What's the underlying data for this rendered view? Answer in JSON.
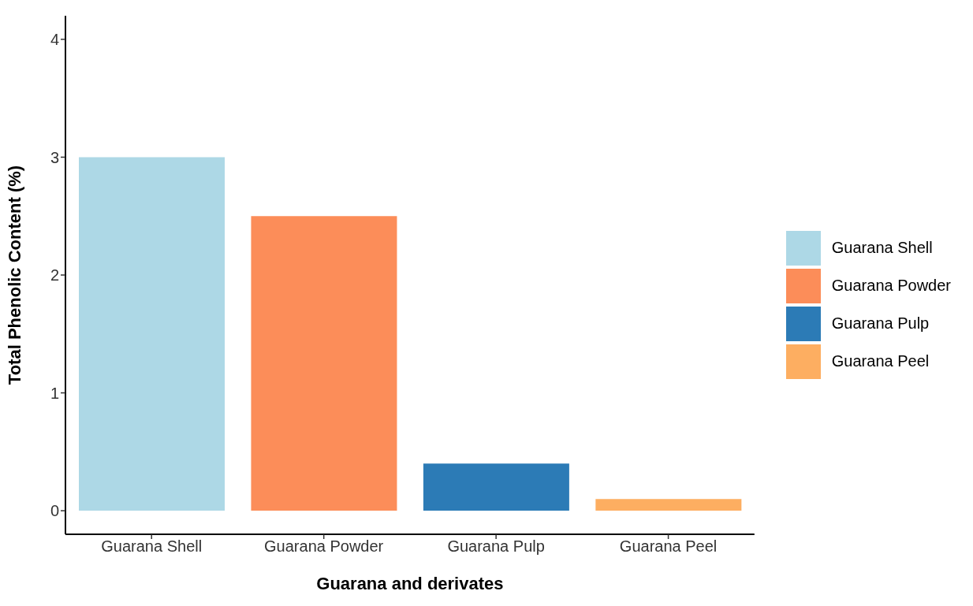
{
  "chart_data": {
    "type": "bar",
    "xlabel": "Guarana and derivates",
    "ylabel": "Total Phenolic Content (%)",
    "categories": [
      "Guarana Shell",
      "Guarana Powder",
      "Guarana Pulp",
      "Guarana Peel"
    ],
    "series": [
      {
        "name": "Guarana Shell",
        "color": "#add8e6",
        "values": [
          3.0,
          null,
          null,
          null
        ]
      },
      {
        "name": "Guarana Powder",
        "color": "#fc8d59",
        "values": [
          null,
          2.5,
          null,
          null
        ]
      },
      {
        "name": "Guarana Pulp",
        "color": "#2c7bb6",
        "values": [
          null,
          null,
          0.4,
          null
        ]
      },
      {
        "name": "Guarana Peel",
        "color": "#fdae61",
        "values": [
          null,
          null,
          null,
          0.1
        ]
      }
    ],
    "stacked": true,
    "ylim": [
      -0.2,
      4.2
    ],
    "yticks": [
      0,
      1,
      2,
      3,
      4
    ],
    "legend": "right"
  }
}
